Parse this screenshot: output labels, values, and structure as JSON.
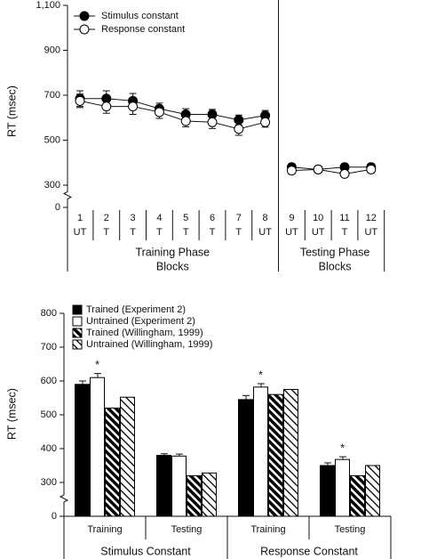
{
  "chart_data": [
    {
      "type": "line",
      "ylabel": "RT (msec)",
      "ylim": [
        0,
        1100
      ],
      "yticks": [
        0,
        300,
        500,
        700,
        900,
        {
          "value": 1100,
          "label": "1,100"
        }
      ],
      "axis_break": true,
      "groups": [
        {
          "label": [
            "Training Phase",
            "Blocks"
          ],
          "blocks": [
            {
              "block": "1",
              "condition": "UT"
            },
            {
              "block": "2",
              "condition": "T"
            },
            {
              "block": "3",
              "condition": "T"
            },
            {
              "block": "4",
              "condition": "T"
            },
            {
              "block": "5",
              "condition": "T"
            },
            {
              "block": "6",
              "condition": "T"
            },
            {
              "block": "7",
              "condition": "T"
            },
            {
              "block": "8",
              "condition": "UT"
            }
          ]
        },
        {
          "label": [
            "Testing Phase",
            "Blocks"
          ],
          "blocks": [
            {
              "block": "9",
              "condition": "UT"
            },
            {
              "block": "10",
              "condition": "UT"
            },
            {
              "block": "11",
              "condition": "T"
            },
            {
              "block": "12",
              "condition": "UT"
            }
          ]
        }
      ],
      "series": [
        {
          "name": "Stimulus constant",
          "color": "#000000",
          "values": [
            685,
            685,
            675,
            640,
            615,
            615,
            590,
            610,
            380,
            370,
            380,
            380
          ],
          "errors": [
            35,
            35,
            33,
            25,
            25,
            22,
            22,
            22,
            15,
            14,
            15,
            15
          ]
        },
        {
          "name": "Response constant",
          "color": "#ffffff",
          "values": [
            675,
            650,
            650,
            625,
            585,
            580,
            550,
            580,
            365,
            370,
            350,
            370
          ],
          "errors": [
            30,
            30,
            35,
            28,
            25,
            28,
            28,
            22,
            15,
            14,
            12,
            15
          ]
        }
      ]
    },
    {
      "type": "bar",
      "ylabel": "RT (msec)",
      "ylim": [
        0,
        800
      ],
      "yticks": [
        0,
        300,
        400,
        500,
        600,
        700,
        800
      ],
      "axis_break": true,
      "groups": [
        "Stimulus Constant",
        "Response Constant"
      ],
      "categories": [
        "Training",
        "Testing",
        "Training",
        "Testing"
      ],
      "significance": [
        "*",
        null,
        "*",
        "*"
      ],
      "series": [
        {
          "name": "Trained (Experiment 2)",
          "color": "#000000",
          "values": [
            590,
            380,
            545,
            350
          ],
          "errors": [
            10,
            5,
            12,
            8
          ]
        },
        {
          "name": "Untrained (Experiment 2)",
          "color": "#ffffff",
          "values": [
            610,
            378,
            582,
            368
          ],
          "errors": [
            12,
            6,
            10,
            8
          ]
        },
        {
          "name": "Trained (Willingham, 1999)",
          "color": "#000000",
          "hatch": "dense",
          "values": [
            520,
            320,
            560,
            320
          ]
        },
        {
          "name": "Untrained (Willingham, 1999)",
          "color": "#000000",
          "hatch": "light",
          "values": [
            552,
            328,
            575,
            350
          ]
        }
      ]
    }
  ]
}
